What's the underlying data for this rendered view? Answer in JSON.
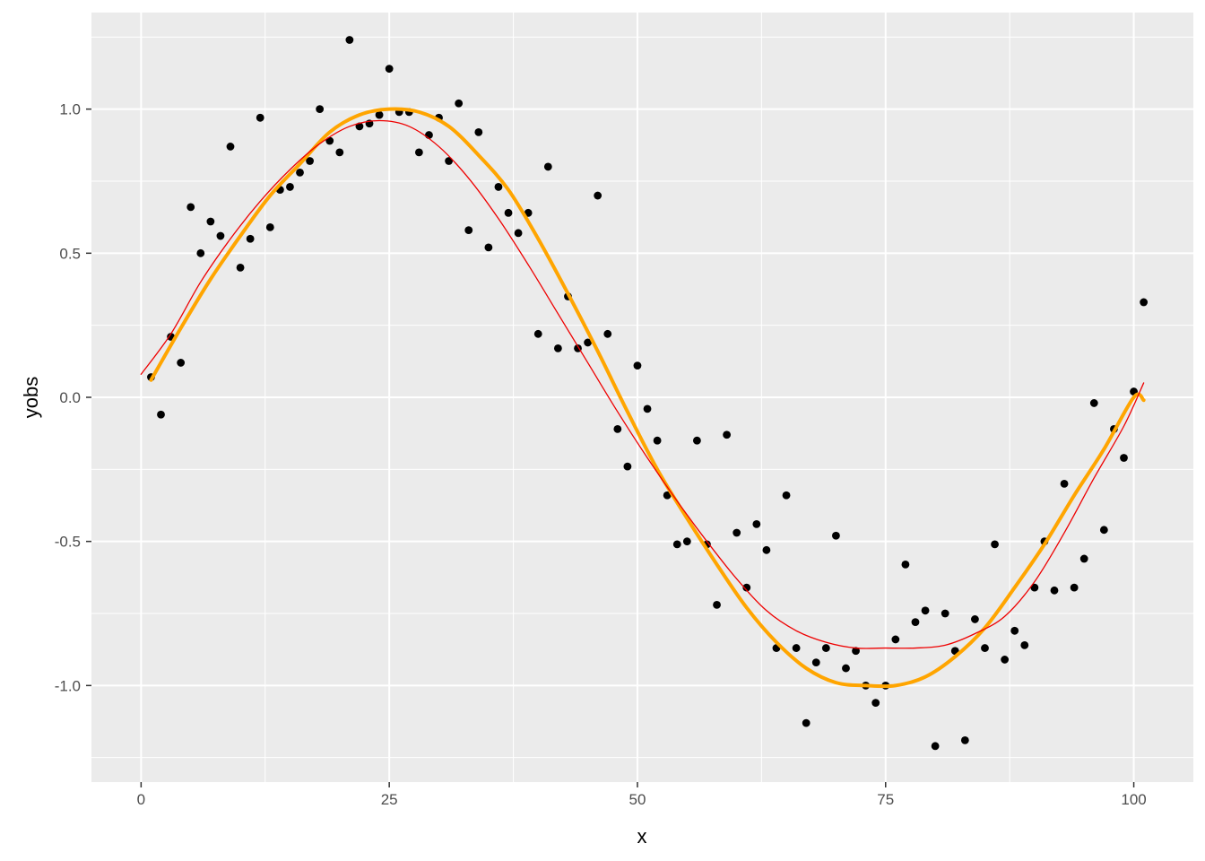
{
  "chart_data": {
    "type": "scatter",
    "title": "",
    "xlabel": "x",
    "ylabel": "yobs",
    "xlim": [
      -5,
      106
    ],
    "ylim": [
      -1.335,
      1.335
    ],
    "x_ticks": [
      0,
      25,
      50,
      75,
      100
    ],
    "x_tick_labels": [
      "0",
      "25",
      "50",
      "75",
      "100"
    ],
    "y_ticks": [
      -1.0,
      -0.5,
      0.0,
      0.5,
      1.0
    ],
    "y_tick_labels": [
      "-1.0",
      "-0.5",
      "0.0",
      "0.5",
      "1.0"
    ],
    "grid": true,
    "panel_color": "#ebebeb",
    "grid_color": "#ffffff",
    "point_color": "#000000",
    "points": {
      "x": [
        1,
        2,
        3,
        4,
        5,
        6,
        7,
        8,
        9,
        10,
        11,
        12,
        13,
        14,
        15,
        16,
        17,
        18,
        19,
        20,
        21,
        22,
        23,
        24,
        25,
        26,
        27,
        28,
        29,
        30,
        31,
        32,
        33,
        34,
        35,
        36,
        37,
        38,
        39,
        40,
        41,
        42,
        43,
        44,
        45,
        46,
        47,
        48,
        49,
        50,
        51,
        52,
        53,
        54,
        55,
        56,
        57,
        58,
        59,
        60,
        61,
        62,
        63,
        64,
        65,
        66,
        67,
        68,
        69,
        70,
        71,
        72,
        73,
        74,
        75,
        76,
        77,
        78,
        79,
        80,
        81,
        82,
        83,
        84,
        85,
        86,
        87,
        88,
        89,
        90,
        91,
        92,
        93,
        94,
        95,
        96,
        97,
        98,
        99,
        100,
        101
      ],
      "y": [
        0.07,
        -0.06,
        0.21,
        0.12,
        0.66,
        0.5,
        0.61,
        0.56,
        0.87,
        0.45,
        0.55,
        0.97,
        0.59,
        0.72,
        0.73,
        0.78,
        0.82,
        1.0,
        0.89,
        0.85,
        1.24,
        0.94,
        0.95,
        0.98,
        1.14,
        0.99,
        0.99,
        0.85,
        0.91,
        0.97,
        0.82,
        1.02,
        0.58,
        0.92,
        0.52,
        0.73,
        0.64,
        0.57,
        0.64,
        0.22,
        0.8,
        0.17,
        0.35,
        0.17,
        0.19,
        0.7,
        0.22,
        -0.11,
        -0.24,
        0.11,
        -0.04,
        -0.15,
        -0.34,
        -0.51,
        -0.5,
        -0.15,
        -0.51,
        -0.72,
        -0.13,
        -0.47,
        -0.66,
        -0.44,
        -0.53,
        -0.87,
        -0.34,
        -0.87,
        -1.13,
        -0.92,
        -0.87,
        -0.48,
        -0.94,
        -0.88,
        -1.0,
        -1.06,
        -1.0,
        -0.84,
        -0.58,
        -0.78,
        -0.74,
        -1.21,
        -0.75,
        -0.88,
        -1.19,
        -0.77,
        -0.87,
        -0.51,
        -0.91,
        -0.81,
        -0.86,
        -0.66,
        -0.5,
        -0.67,
        -0.3,
        -0.66,
        -0.56,
        -0.02,
        -0.46,
        -0.11,
        -0.21,
        0.02,
        0.33
      ]
    },
    "series": [
      {
        "color": "#ffa500",
        "line_width": 4,
        "x": [
          1,
          4,
          7,
          10,
          13,
          16,
          19,
          22,
          25,
          28,
          31,
          34,
          37,
          40,
          43,
          46,
          49,
          52,
          55,
          58,
          61,
          64,
          67,
          70,
          73,
          76,
          79,
          82,
          85,
          88,
          91,
          94,
          97,
          100,
          101
        ],
        "y": [
          0.06,
          0.24,
          0.41,
          0.56,
          0.7,
          0.81,
          0.92,
          0.98,
          1.0,
          0.99,
          0.94,
          0.84,
          0.72,
          0.55,
          0.36,
          0.16,
          -0.05,
          -0.25,
          -0.42,
          -0.58,
          -0.73,
          -0.85,
          -0.94,
          -0.99,
          -1.0,
          -1.0,
          -0.97,
          -0.9,
          -0.8,
          -0.66,
          -0.51,
          -0.34,
          -0.18,
          0.0,
          -0.01
        ]
      },
      {
        "color": "#ee0000",
        "line_width": 1.3,
        "x": [
          0,
          3,
          6,
          9,
          12,
          15,
          18,
          21,
          24,
          27,
          30,
          33,
          36,
          39,
          42,
          45,
          48,
          51,
          54,
          57,
          60,
          63,
          66,
          69,
          72,
          75,
          78,
          81,
          84,
          87,
          90,
          93,
          96,
          99,
          101
        ],
        "y": [
          0.08,
          0.22,
          0.4,
          0.55,
          0.68,
          0.79,
          0.88,
          0.94,
          0.96,
          0.94,
          0.87,
          0.76,
          0.62,
          0.46,
          0.29,
          0.12,
          -0.05,
          -0.21,
          -0.36,
          -0.5,
          -0.63,
          -0.74,
          -0.81,
          -0.85,
          -0.87,
          -0.87,
          -0.87,
          -0.86,
          -0.82,
          -0.76,
          -0.64,
          -0.47,
          -0.28,
          -0.1,
          0.05
        ]
      }
    ]
  }
}
